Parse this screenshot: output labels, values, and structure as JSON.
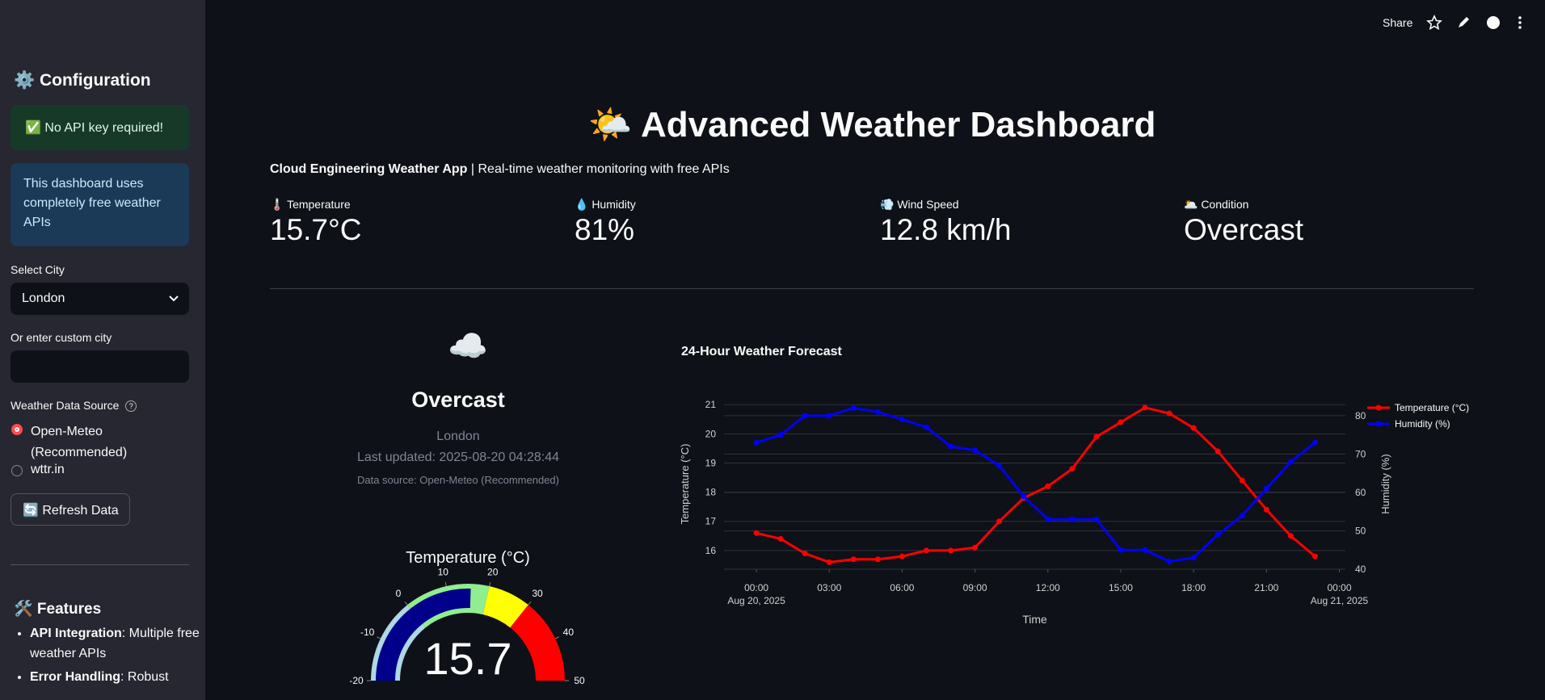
{
  "toolbar": {
    "share": "Share"
  },
  "sidebar": {
    "config_title": "⚙️ Configuration",
    "success": "✅ No API key required!",
    "info": "This dashboard uses completely free weather APIs",
    "city_label": "Select City",
    "city_value": "London",
    "custom_label": "Or enter custom city",
    "source_label": "Weather Data Source",
    "sources": [
      "Open-Meteo (Recommended)",
      "wttr.in"
    ],
    "refresh": "🔄 Refresh Data",
    "features_title": "🛠️ Features",
    "features": [
      {
        "bold": "API Integration",
        "text": ": Multiple free weather APIs"
      },
      {
        "bold": "Error Handling",
        "text": ": Robust"
      }
    ]
  },
  "header": {
    "title": "🌤️ Advanced Weather Dashboard",
    "subtitle_bold": "Cloud Engineering Weather App",
    "subtitle": " | Real-time weather monitoring with free APIs"
  },
  "metrics": [
    {
      "label": "🌡️ Temperature",
      "value": "15.7°C"
    },
    {
      "label": "💧 Humidity",
      "value": "81%"
    },
    {
      "label": "💨 Wind Speed",
      "value": "12.8 km/h"
    },
    {
      "label": "🌥️ Condition",
      "value": "Overcast"
    }
  ],
  "current": {
    "icon": "☁️",
    "condition": "Overcast",
    "city": "London",
    "updated": "Last updated: 2025-08-20 04:28:44",
    "source": "Data source: Open-Meteo (Recommended)"
  },
  "chart_data": [
    {
      "type": "line",
      "title": "24-Hour Weather Forecast",
      "xlabel": "Time",
      "ylabel": "Temperature (°C)",
      "y2label": "Humidity (%)",
      "x": [
        "2025-08-20 00:00",
        "2025-08-20 01:00",
        "2025-08-20 02:00",
        "2025-08-20 03:00",
        "2025-08-20 04:00",
        "2025-08-20 05:00",
        "2025-08-20 06:00",
        "2025-08-20 07:00",
        "2025-08-20 08:00",
        "2025-08-20 09:00",
        "2025-08-20 10:00",
        "2025-08-20 11:00",
        "2025-08-20 12:00",
        "2025-08-20 13:00",
        "2025-08-20 14:00",
        "2025-08-20 15:00",
        "2025-08-20 16:00",
        "2025-08-20 17:00",
        "2025-08-20 18:00",
        "2025-08-20 19:00",
        "2025-08-20 20:00",
        "2025-08-20 21:00",
        "2025-08-20 22:00",
        "2025-08-20 23:00"
      ],
      "series": [
        {
          "name": "Temperature (°C)",
          "color": "#ff0000",
          "axis": "y",
          "values": [
            16.6,
            16.4,
            15.9,
            15.6,
            15.7,
            15.7,
            15.8,
            16.0,
            16.0,
            16.1,
            17.0,
            17.8,
            18.2,
            18.8,
            19.9,
            20.4,
            20.9,
            20.7,
            20.2,
            19.4,
            18.4,
            17.4,
            16.5,
            15.8
          ]
        },
        {
          "name": "Humidity (%)",
          "color": "#0000ff",
          "axis": "y2",
          "values": [
            73,
            75,
            80,
            80,
            82,
            81,
            79,
            77,
            72,
            71,
            67,
            59,
            53,
            53,
            53,
            45,
            45,
            42,
            43,
            49,
            54,
            61,
            68,
            73
          ]
        }
      ],
      "xlim": [
        "2025-08-19 22:40",
        "2025-08-21 00:15"
      ],
      "xticks": [
        {
          "value": "2025-08-20 00:00",
          "label": "00:00\nAug 20, 2025"
        },
        {
          "value": "2025-08-20 03:00",
          "label": "03:00"
        },
        {
          "value": "2025-08-20 06:00",
          "label": "06:00"
        },
        {
          "value": "2025-08-20 09:00",
          "label": "09:00"
        },
        {
          "value": "2025-08-20 12:00",
          "label": "12:00"
        },
        {
          "value": "2025-08-20 15:00",
          "label": "15:00"
        },
        {
          "value": "2025-08-20 18:00",
          "label": "18:00"
        },
        {
          "value": "2025-08-20 21:00",
          "label": "21:00"
        },
        {
          "value": "2025-08-21 00:00",
          "label": "00:00\nAug 21, 2025"
        }
      ],
      "ylim": [
        15.36,
        21.2
      ],
      "yticks": [
        16,
        17,
        18,
        19,
        20,
        21
      ],
      "y2lim": [
        40,
        84.4
      ],
      "y2ticks": [
        40,
        50,
        60,
        70,
        80
      ],
      "grid": true,
      "legend": "right"
    },
    {
      "type": "gauge",
      "title": "Temperature (°C)",
      "value": 15.7,
      "range": [
        -20,
        50
      ],
      "ticks": [
        -20,
        -10,
        0,
        10,
        20,
        30,
        40,
        50
      ],
      "bar_color": "#00008b",
      "steps": [
        {
          "range": [
            -20,
            0
          ],
          "color": "#add8e6"
        },
        {
          "range": [
            0,
            20
          ],
          "color": "#90ee90"
        },
        {
          "range": [
            20,
            30
          ],
          "color": "#ffff00"
        },
        {
          "range": [
            30,
            50
          ],
          "color": "#ff0000"
        }
      ]
    }
  ]
}
